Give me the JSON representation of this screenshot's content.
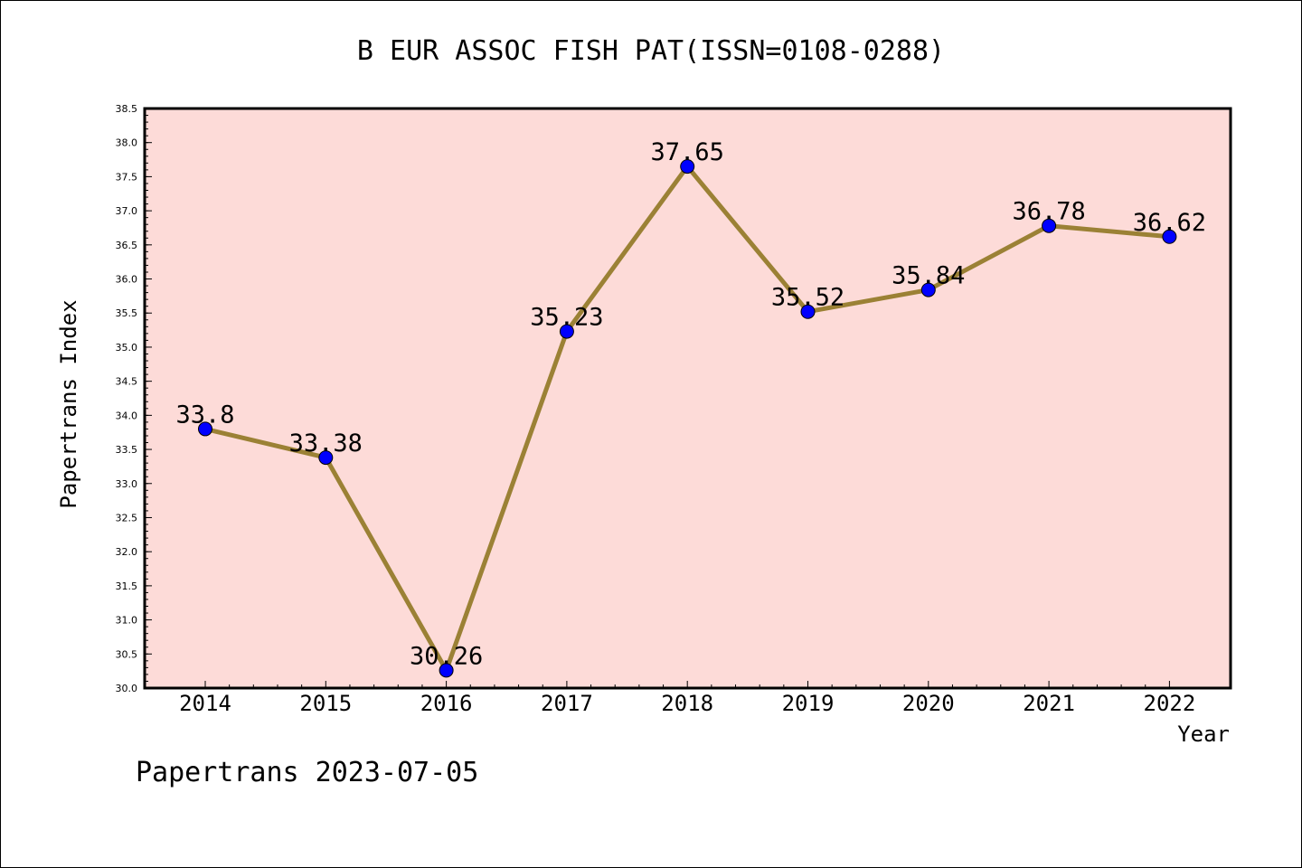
{
  "chart_data": {
    "type": "line",
    "title": "B EUR ASSOC FISH PAT(ISSN=0108-0288)",
    "xlabel": "Year",
    "ylabel": "Papertrans Index",
    "footer": "Papertrans 2023-07-05",
    "categories": [
      "2014",
      "2015",
      "2016",
      "2017",
      "2018",
      "2019",
      "2020",
      "2021",
      "2022"
    ],
    "values": [
      33.8,
      33.38,
      30.26,
      35.23,
      37.65,
      35.52,
      35.84,
      36.78,
      36.62
    ],
    "data_labels": [
      "33.8",
      "33.38",
      "30.26",
      "35.23",
      "37.65",
      "35.52",
      "35.84",
      "36.78",
      "36.62"
    ],
    "ylim": [
      30.0,
      38.5
    ],
    "yticks": [
      "30.0",
      "30.5",
      "31.0",
      "31.5",
      "32.0",
      "32.5",
      "33.0",
      "33.5",
      "34.0",
      "34.5",
      "35.0",
      "35.5",
      "36.0",
      "36.5",
      "37.0",
      "37.5",
      "38.0",
      "38.5"
    ],
    "grid": false,
    "colors": {
      "plot_background": "#fddbd8",
      "line": "#9b8135",
      "marker": "#0000ff"
    }
  }
}
